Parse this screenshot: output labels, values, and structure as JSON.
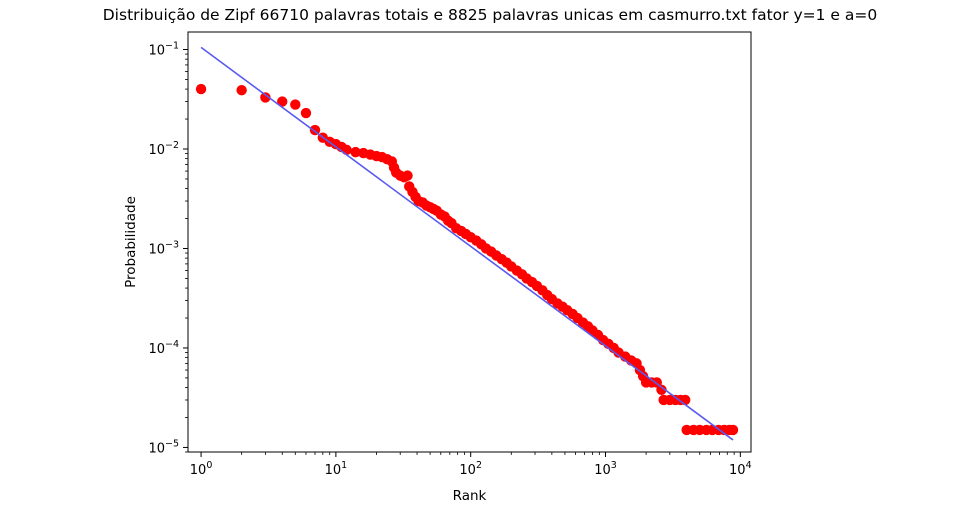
{
  "chart_data": {
    "type": "scatter",
    "title": "Distribuição de Zipf 66710 palavras totais e 8825 palavras unicas em casmurro.txt fator y=1 e a=0",
    "xlabel": "Rank",
    "ylabel": "Probabilidade",
    "xscale": "log",
    "yscale": "log",
    "xlim": [
      0.8,
      12000
    ],
    "ylim": [
      9e-06,
      0.15
    ],
    "grid": false,
    "x_ticks": [
      {
        "value": 1,
        "base": "10",
        "exp": "0"
      },
      {
        "value": 10,
        "base": "10",
        "exp": "1"
      },
      {
        "value": 100,
        "base": "10",
        "exp": "2"
      },
      {
        "value": 1000,
        "base": "10",
        "exp": "3"
      },
      {
        "value": 10000,
        "base": "10",
        "exp": "4"
      }
    ],
    "y_ticks": [
      {
        "value": 1e-05,
        "base": "10",
        "exp": "−5"
      },
      {
        "value": 0.0001,
        "base": "10",
        "exp": "−4"
      },
      {
        "value": 0.001,
        "base": "10",
        "exp": "−3"
      },
      {
        "value": 0.01,
        "base": "10",
        "exp": "−2"
      },
      {
        "value": 0.1,
        "base": "10",
        "exp": "−1"
      }
    ],
    "series": [
      {
        "kind": "scatter",
        "color": "#ff0000",
        "points": [
          [
            1,
            0.04
          ],
          [
            2,
            0.039
          ],
          [
            3,
            0.033
          ],
          [
            4,
            0.03
          ],
          [
            5,
            0.028
          ],
          [
            6,
            0.023
          ],
          [
            7,
            0.0155
          ],
          [
            8,
            0.013
          ],
          [
            9,
            0.0118
          ],
          [
            10,
            0.0112
          ],
          [
            11,
            0.0105
          ],
          [
            12,
            0.0098
          ],
          [
            14,
            0.0093
          ],
          [
            16,
            0.0091
          ],
          [
            18,
            0.0088
          ],
          [
            20,
            0.0085
          ],
          [
            22,
            0.0083
          ],
          [
            24,
            0.0079
          ],
          [
            26,
            0.0075
          ],
          [
            27,
            0.0065
          ],
          [
            28,
            0.0058
          ],
          [
            30,
            0.0054
          ],
          [
            32,
            0.0052
          ],
          [
            34,
            0.0054
          ],
          [
            35,
            0.0042
          ],
          [
            37,
            0.0037
          ],
          [
            39,
            0.0033
          ],
          [
            41,
            0.003
          ],
          [
            44,
            0.0029
          ],
          [
            47,
            0.0027
          ],
          [
            50,
            0.0026
          ],
          [
            53,
            0.0025
          ],
          [
            56,
            0.0024
          ],
          [
            60,
            0.0022
          ],
          [
            64,
            0.0021
          ],
          [
            68,
            0.0019
          ],
          [
            72,
            0.0018
          ],
          [
            78,
            0.0016
          ],
          [
            85,
            0.0015
          ],
          [
            92,
            0.0014
          ],
          [
            100,
            0.0013
          ],
          [
            110,
            0.0012
          ],
          [
            120,
            0.0011
          ],
          [
            130,
            0.001
          ],
          [
            142,
            0.00093
          ],
          [
            155,
            0.00085
          ],
          [
            170,
            0.00078
          ],
          [
            185,
            0.00072
          ],
          [
            200,
            0.00066
          ],
          [
            220,
            0.0006
          ],
          [
            240,
            0.00055
          ],
          [
            260,
            0.0005
          ],
          [
            285,
            0.00046
          ],
          [
            310,
            0.00042
          ],
          [
            340,
            0.00038
          ],
          [
            370,
            0.00034
          ],
          [
            400,
            0.00031
          ],
          [
            440,
            0.00028
          ],
          [
            480,
            0.00026
          ],
          [
            520,
            0.00024
          ],
          [
            570,
            0.00022
          ],
          [
            620,
            0.0002
          ],
          [
            680,
            0.00018
          ],
          [
            740,
            0.000165
          ],
          [
            800,
            0.00015
          ],
          [
            880,
            0.000135
          ],
          [
            960,
            0.00012
          ],
          [
            1050,
            0.00011
          ],
          [
            1150,
            0.0001
          ],
          [
            1250,
            9e-05
          ],
          [
            1400,
            8.2e-05
          ],
          [
            1550,
            7.5e-05
          ],
          [
            1700,
            7e-05
          ],
          [
            1800,
            6e-05
          ],
          [
            1900,
            5.2e-05
          ],
          [
            2000,
            4.5e-05
          ],
          [
            2200,
            4.5e-05
          ],
          [
            2400,
            4.5e-05
          ],
          [
            2600,
            3.8e-05
          ],
          [
            2700,
            3e-05
          ],
          [
            3000,
            3e-05
          ],
          [
            3300,
            3e-05
          ],
          [
            3600,
            3e-05
          ],
          [
            3900,
            3e-05
          ],
          [
            4000,
            1.5e-05
          ],
          [
            4500,
            1.5e-05
          ],
          [
            5000,
            1.5e-05
          ],
          [
            5600,
            1.5e-05
          ],
          [
            6200,
            1.5e-05
          ],
          [
            6900,
            1.5e-05
          ],
          [
            7600,
            1.5e-05
          ],
          [
            8300,
            1.5e-05
          ],
          [
            8825,
            1.5e-05
          ]
        ]
      },
      {
        "kind": "line",
        "color": "#5a5af0",
        "points": [
          [
            1,
            0.105
          ],
          [
            8825,
            1.19e-05
          ]
        ]
      }
    ]
  }
}
